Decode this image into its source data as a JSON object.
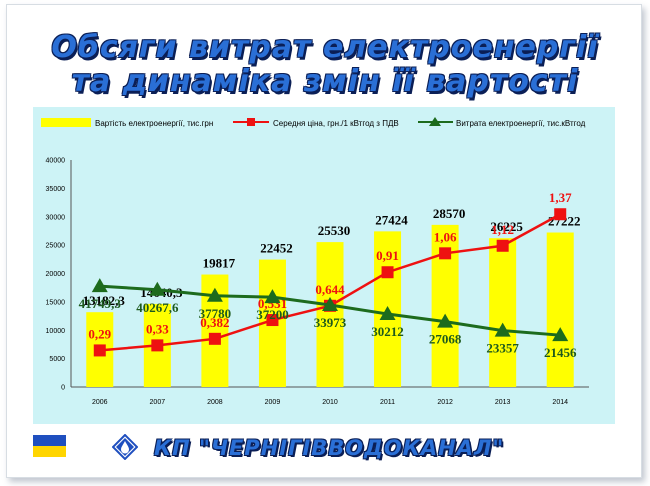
{
  "slide": {
    "title_line1": "Обсяги витрат електроенергії",
    "title_line2": "та динаміка змін її вартості",
    "footer": "КП \"ЧЕРНІГІВВОДОКАНАЛ\""
  },
  "colors": {
    "panel": "#cdf3f6",
    "bars": "#ffff00",
    "price_line": "#ee1111",
    "consumption_line": "#1d6b1d",
    "title": "#2a6fd6"
  },
  "chart_data": {
    "type": "bar",
    "categories": [
      "2006",
      "2007",
      "2008",
      "2009",
      "2010",
      "2011",
      "2012",
      "2013",
      "2014"
    ],
    "ylim": [
      0,
      40000
    ],
    "yticks": [
      "0",
      "5000",
      "10000",
      "15000",
      "20000",
      "25000",
      "30000",
      "35000",
      "40000"
    ],
    "legend_position": "top",
    "grid": false,
    "series": [
      {
        "name": "Вартість електроенергії, тис.грн",
        "type": "bar",
        "values": [
          13182.3,
          14640.3,
          19817,
          22452,
          25530,
          27424,
          28570,
          26225,
          27222
        ],
        "labels": [
          "13182,3",
          "14640,3",
          "19817",
          "22452",
          "25530",
          "27424",
          "28570",
          "26225",
          "27222"
        ]
      },
      {
        "name": "Середня ціна, грн./1 кВтгод з ПДВ",
        "type": "line",
        "values": [
          0.29,
          0.33,
          0.382,
          0.531,
          0.644,
          0.91,
          1.06,
          1.12,
          1.37
        ],
        "labels": [
          "0,29",
          "0,33",
          "0,382",
          "0,531",
          "0,644",
          "0,91",
          "1,06",
          "1,12",
          "1,37"
        ]
      },
      {
        "name": "Витрата електроенергії, тис.кВтгод",
        "type": "line",
        "values": [
          41749.3,
          40267.6,
          37780,
          37200,
          33973,
          30212,
          27068,
          23357,
          21456
        ],
        "labels": [
          "41749,3",
          "40267,6",
          "37780",
          "37200",
          "33973",
          "30212",
          "27068",
          "23357",
          "21456"
        ]
      }
    ]
  }
}
